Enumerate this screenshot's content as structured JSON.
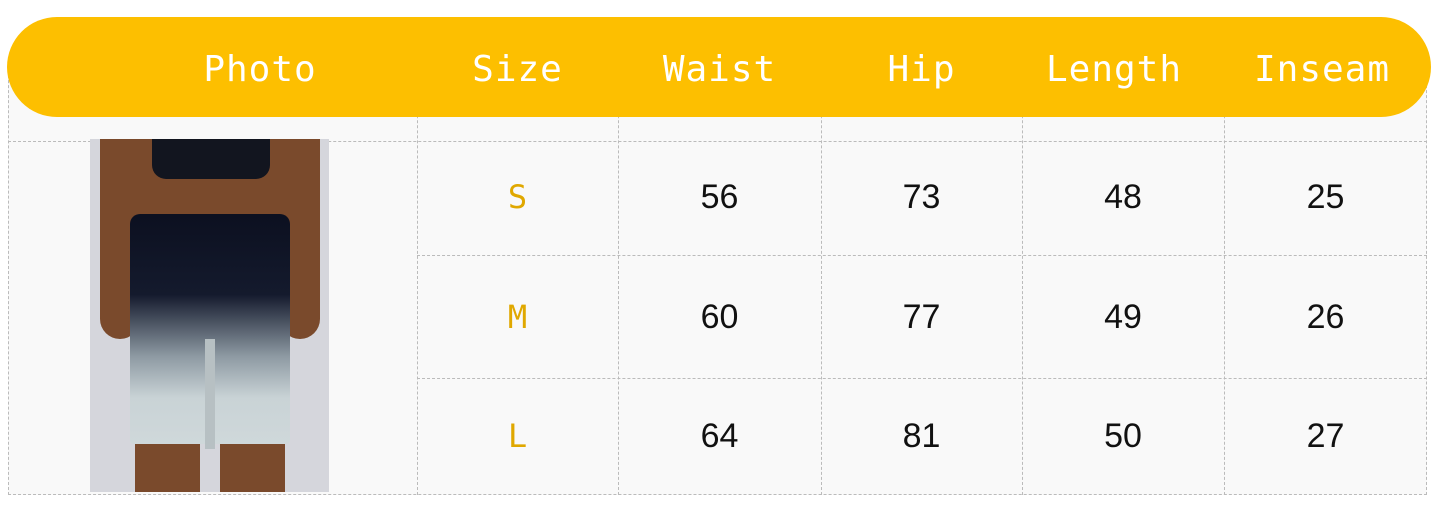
{
  "headers": [
    "Photo",
    "Size",
    "Waist",
    "Hip",
    "Length",
    "Inseam"
  ],
  "rows": [
    {
      "size": "S",
      "waist": "56",
      "hip": "73",
      "length": "48",
      "inseam": "25"
    },
    {
      "size": "M",
      "waist": "60",
      "hip": "77",
      "length": "49",
      "inseam": "26"
    },
    {
      "size": "L",
      "waist": "64",
      "hip": "81",
      "length": "50",
      "inseam": "27"
    }
  ],
  "colors": {
    "header": "#fdbf00",
    "size_text": "#e0a800"
  },
  "photo": {
    "subject": "model wearing gradient black-to-grey shorts"
  }
}
